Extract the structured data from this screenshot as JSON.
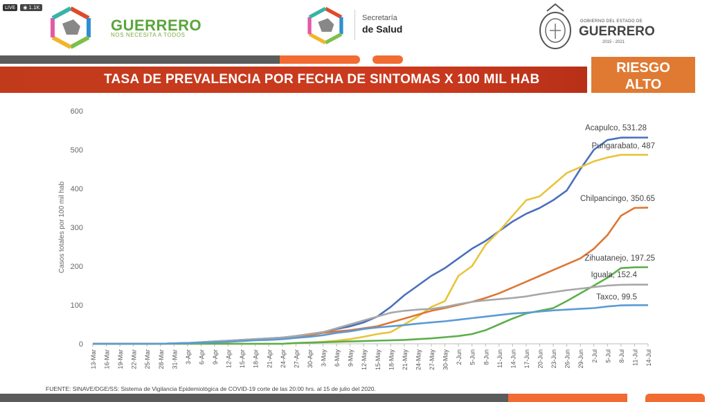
{
  "header": {
    "live_label": "LIVE",
    "views": "1.1K",
    "brand_name": "GUERRERO",
    "brand_tagline": "NOS NECESITA A TODOS",
    "secretaria_line1": "Secretaría",
    "secretaria_line2": "de Salud",
    "gobierno_line1": "GOBIERNO DEL ESTADO DE",
    "gobierno_line2": "GUERRERO",
    "gobierno_years": "2015 - 2021"
  },
  "title": "TASA DE PREVALENCIA POR FECHA DE SINTOMAS X 100 MIL HAB",
  "risk": {
    "line1": "RIESGO",
    "line2": "ALTO"
  },
  "footer": "FUENTE: SINAVE/DGE/SS: Sistema de Vigilancia Epidemiológica de COVID-19 corte de las 20:00 hrs. al 15 de julio del 2020.",
  "colors": {
    "green": "#5aa53c",
    "title_bar": "#c8381c",
    "risk_orange": "#e07a33",
    "acapulco": "#4a6fbd",
    "pungarabato": "#e8c43a",
    "chilpancingo": "#de7632",
    "zihuatanejo": "#5caf4a",
    "iguala": "#a8a8a8",
    "taxco": "#5a9bd6"
  },
  "chart_data": {
    "type": "line",
    "ylabel": "Casos totales por 100 mil hab",
    "ylim": [
      0,
      600
    ],
    "yticks": [
      0,
      100,
      200,
      300,
      400,
      500,
      600
    ],
    "x": [
      "13-Mar",
      "16-Mar",
      "19-Mar",
      "22-Mar",
      "25-Mar",
      "28-Mar",
      "31-Mar",
      "3-Apr",
      "6-Apr",
      "9-Apr",
      "12-Apr",
      "15-Apr",
      "18-Apr",
      "21-Apr",
      "24-Apr",
      "27-Apr",
      "30-Apr",
      "3-May",
      "6-May",
      "9-May",
      "12-May",
      "15-May",
      "18-May",
      "21-May",
      "24-May",
      "27-May",
      "30-May",
      "2-Jun",
      "5-Jun",
      "8-Jun",
      "11-Jun",
      "14-Jun",
      "17-Jun",
      "20-Jun",
      "23-Jun",
      "26-Jun",
      "29-Jun",
      "2-Jul",
      "5-Jul",
      "8-Jul",
      "11-Jul",
      "14-Jul"
    ],
    "series": [
      {
        "name": "Acapulco",
        "label": "Acapulco, 531.28",
        "color": "#4a6fbd",
        "values": [
          0,
          0,
          0,
          0,
          0,
          0,
          1,
          2,
          4,
          6,
          8,
          10,
          12,
          14,
          16,
          20,
          25,
          30,
          38,
          45,
          55,
          70,
          95,
          125,
          150,
          175,
          195,
          220,
          245,
          265,
          290,
          315,
          335,
          350,
          370,
          395,
          450,
          500,
          525,
          531,
          531.28,
          531.28
        ]
      },
      {
        "name": "Pungarabato",
        "label": "Pungarabato, 487",
        "color": "#e8c43a",
        "values": [
          0,
          0,
          0,
          0,
          0,
          0,
          0,
          0,
          0,
          0,
          0,
          0,
          0,
          0,
          0,
          2,
          3,
          5,
          8,
          12,
          18,
          25,
          30,
          50,
          70,
          95,
          110,
          175,
          200,
          255,
          290,
          330,
          370,
          380,
          410,
          440,
          455,
          470,
          480,
          487,
          487,
          487
        ]
      },
      {
        "name": "Chilpancingo",
        "label": "Chilpancingo, 350.65",
        "color": "#de7632",
        "values": [
          0,
          0,
          0,
          0,
          0,
          0,
          1,
          2,
          3,
          5,
          7,
          9,
          11,
          13,
          16,
          18,
          22,
          28,
          32,
          35,
          40,
          45,
          55,
          65,
          75,
          85,
          92,
          100,
          108,
          118,
          130,
          145,
          160,
          175,
          190,
          205,
          220,
          245,
          280,
          330,
          350,
          350.65
        ]
      },
      {
        "name": "Zihuatanejo",
        "label": "Zihuatanejo, 197.25",
        "color": "#5caf4a",
        "values": [
          0,
          0,
          0,
          0,
          0,
          0,
          0,
          0,
          0,
          0,
          0,
          0,
          0,
          0,
          0,
          2,
          3,
          4,
          5,
          6,
          7,
          8,
          9,
          10,
          12,
          14,
          17,
          20,
          25,
          35,
          50,
          65,
          78,
          85,
          92,
          110,
          130,
          150,
          170,
          195,
          197,
          197.25
        ]
      },
      {
        "name": "Iguala",
        "label": "Iguala, 152.4",
        "color": "#a8a8a8",
        "values": [
          0,
          0,
          0,
          0,
          0,
          0,
          1,
          2,
          4,
          6,
          8,
          10,
          12,
          14,
          16,
          20,
          25,
          30,
          40,
          50,
          60,
          70,
          80,
          85,
          88,
          90,
          95,
          102,
          108,
          112,
          115,
          118,
          122,
          128,
          133,
          138,
          142,
          146,
          150,
          152,
          152.4,
          152.4
        ]
      },
      {
        "name": "Taxco",
        "label": "Taxco, 99.5",
        "color": "#5a9bd6",
        "values": [
          0,
          0,
          0,
          0,
          0,
          0,
          1,
          2,
          3,
          4,
          5,
          7,
          9,
          10,
          12,
          15,
          18,
          22,
          28,
          32,
          38,
          42,
          45,
          48,
          52,
          55,
          58,
          62,
          66,
          70,
          74,
          78,
          80,
          83,
          86,
          88,
          90,
          92,
          96,
          99,
          99.5,
          99.5
        ]
      }
    ]
  }
}
